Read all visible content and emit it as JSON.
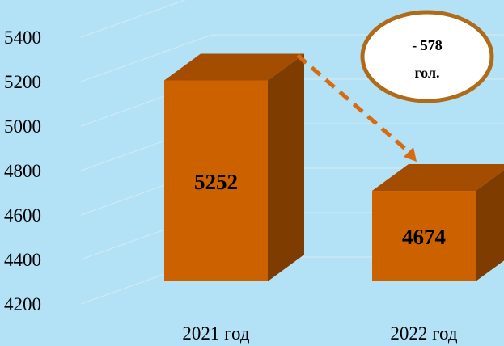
{
  "chart_data": {
    "type": "bar",
    "categories": [
      "2021 год",
      "2022 год"
    ],
    "values": [
      5252,
      4674
    ],
    "value_labels": [
      "5252",
      "4674"
    ],
    "yticks": [
      "4200",
      "4400",
      "4600",
      "4800",
      "5000",
      "5200",
      "5400"
    ],
    "ylim": [
      4200,
      5400
    ],
    "grid": true,
    "three_d": true,
    "title": "",
    "xlabel": "",
    "ylabel": "",
    "annotation": {
      "line1": "- 578",
      "line2": "гол.",
      "arrow": "dashed, from first bar top to second bar top"
    },
    "colors": {
      "background": "#b3e1f6",
      "bar_front": "#cc6100",
      "bar_side": "#7f3c00",
      "bar_top": "#a44d00",
      "arrow": "#d86b10",
      "callout_border": "#b06a18",
      "callout_fill": "#ffffff"
    }
  }
}
